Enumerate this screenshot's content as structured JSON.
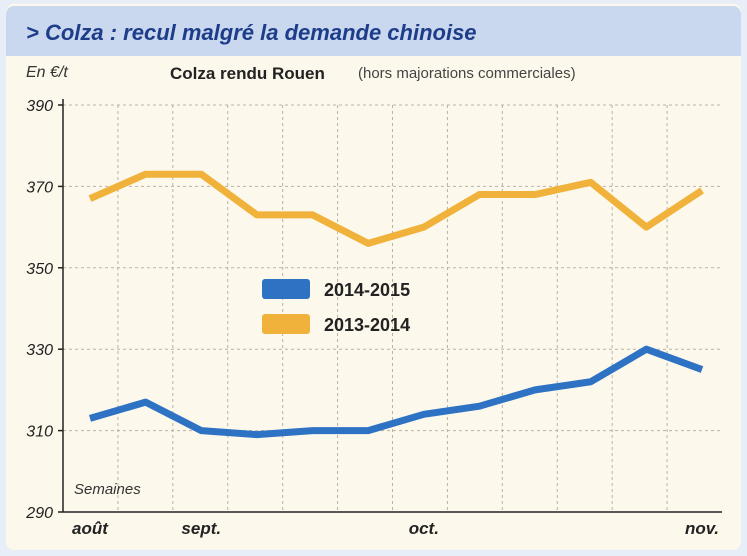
{
  "banner": {
    "title": "> Colza : recul malgré la demande chinoise"
  },
  "chart_data": {
    "type": "line",
    "title": "Colza rendu Rouen",
    "subtitle": "(hors majorations commerciales)",
    "ylabel": "En €/t",
    "xlabel": "Semaines",
    "ylim": [
      290,
      390
    ],
    "yticks": [
      290,
      310,
      330,
      350,
      370,
      390
    ],
    "xlim": [
      0,
      11
    ],
    "x_tick_labels": [
      {
        "x": 0,
        "label": "août"
      },
      {
        "x": 2,
        "label": "sept."
      },
      {
        "x": 6,
        "label": "oct."
      },
      {
        "x": 11,
        "label": "nov."
      }
    ],
    "grid": true,
    "legend_position": "center-left",
    "series": [
      {
        "name": "2014-2015",
        "color": "#2e72c4",
        "x": [
          0,
          1,
          2,
          3,
          4,
          5,
          6,
          7,
          8,
          9,
          10,
          11
        ],
        "values": [
          313,
          317,
          310,
          309,
          310,
          310,
          314,
          316,
          320,
          322,
          330,
          325
        ]
      },
      {
        "name": "2013-2014",
        "color": "#f0b23a",
        "x": [
          0,
          1,
          2,
          3,
          4,
          5,
          6,
          7,
          8,
          9,
          10,
          11
        ],
        "values": [
          367,
          373,
          373,
          363,
          363,
          356,
          360,
          368,
          368,
          371,
          360,
          369
        ]
      }
    ]
  }
}
